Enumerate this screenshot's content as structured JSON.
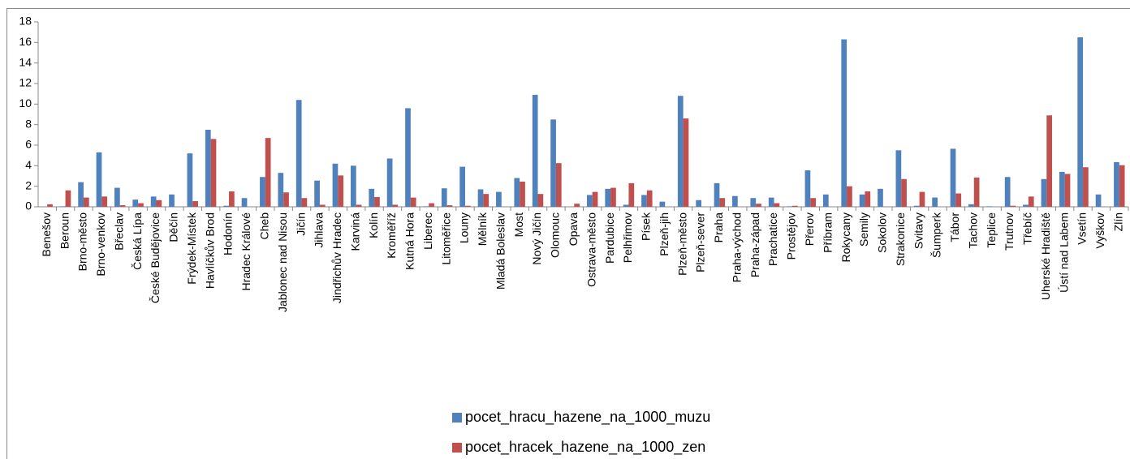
{
  "chart_data": {
    "type": "bar",
    "categories": [
      "Benešov",
      "Beroun",
      "Brno-město",
      "Brno-venkov",
      "Břeclav",
      "Česká Lípa",
      "České Budějovice",
      "Děčín",
      "Frýdek-Místek",
      "Havlíčkův Brod",
      "Hodonín",
      "Hradec Králové",
      "Cheb",
      "Jablonec nad Nisou",
      "Jičín",
      "Jihlava",
      "Jindřichův Hradec",
      "Karviná",
      "Kolín",
      "Kroměříž",
      "Kutná Hora",
      "Liberec",
      "Litoměřice",
      "Louny",
      "Mělník",
      "Mladá Boleslav",
      "Most",
      "Nový Jičín",
      "Olomouc",
      "Opava",
      "Ostrava-město",
      "Pardubice",
      "Pelhřimov",
      "Písek",
      "Plzeň-jih",
      "Plzeň-město",
      "Plzeň-sever",
      "Praha",
      "Praha-východ",
      "Praha-západ",
      "Prachatice",
      "Prostějov",
      "Přerov",
      "Příbram",
      "Rokycany",
      "Semily",
      "Sokolov",
      "Strakonice",
      "Svitavy",
      "Šumperk",
      "Tábor",
      "Tachov",
      "Teplice",
      "Trutnov",
      "Třebíč",
      "Uherské Hradiště",
      "Ústí nad Labem",
      "Vsetín",
      "Vyškov",
      "Zlín"
    ],
    "series": [
      {
        "name": "pocet_hracu_hazene_na_1000_muzu",
        "color": "#4f81bd",
        "values": [
          0,
          0.05,
          2.4,
          5.3,
          1.85,
          0.7,
          1.0,
          1.2,
          5.2,
          7.5,
          0.1,
          0.85,
          2.9,
          3.3,
          10.4,
          2.55,
          4.2,
          4.0,
          1.75,
          4.7,
          9.6,
          0.05,
          1.8,
          3.9,
          1.7,
          1.45,
          2.8,
          10.9,
          8.5,
          0,
          1.15,
          1.75,
          0.2,
          1.15,
          0.5,
          10.8,
          0.65,
          2.3,
          1.05,
          0.85,
          0.9,
          0.05,
          3.55,
          1.2,
          16.3,
          1.2,
          1.75,
          5.5,
          0.1,
          0.9,
          5.65,
          0.25,
          0.05,
          2.9,
          0.2,
          2.7,
          3.4,
          16.5,
          1.2,
          4.35
        ]
      },
      {
        "name": "pocet_hracek_hazene_na_1000_zen",
        "color": "#c0504d",
        "values": [
          0.25,
          1.6,
          0.9,
          1.0,
          0.15,
          0.35,
          0.65,
          0,
          0.55,
          6.6,
          1.5,
          0,
          6.7,
          1.4,
          0.85,
          0.2,
          3.05,
          0.2,
          0.95,
          0.2,
          0.9,
          0.35,
          0.15,
          0.1,
          1.25,
          0,
          2.45,
          1.25,
          4.25,
          0.3,
          1.45,
          1.85,
          2.3,
          1.6,
          0,
          8.6,
          0,
          0.85,
          0,
          0.3,
          0.35,
          0.1,
          0.85,
          0,
          2.0,
          1.5,
          0,
          2.7,
          1.45,
          0,
          1.3,
          2.85,
          0,
          0.1,
          1.0,
          8.9,
          3.2,
          3.85,
          0,
          4.05
        ]
      }
    ],
    "ylim": [
      0,
      18
    ],
    "yticks": [
      0,
      2,
      4,
      6,
      8,
      10,
      12,
      14,
      16,
      18
    ],
    "grid": false,
    "legend": "bottom"
  }
}
